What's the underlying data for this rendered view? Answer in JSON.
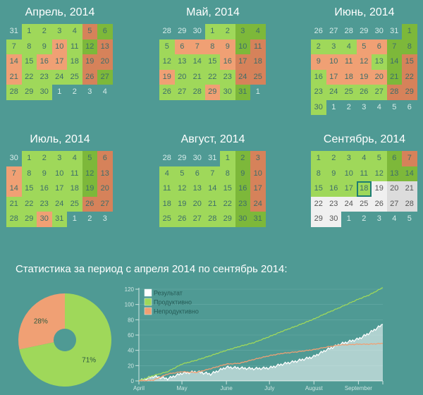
{
  "colors": {
    "background": "#4f9a94",
    "productive_weekday": "#9fd85a",
    "productive_weekend": "#7db83a",
    "unproductive_weekday": "#f0a074",
    "unproductive_weekend": "#d6825a",
    "future_weekday": "#f0f0f0",
    "future_weekend": "#dcdcdc",
    "result": "#ffffff",
    "today_border": "#1d7d73"
  },
  "months": [
    {
      "title": "Апрель, 2014",
      "weeks": [
        [
          [
            "31",
            "out"
          ],
          [
            "1",
            "lg"
          ],
          [
            "2",
            "lg"
          ],
          [
            "3",
            "lg"
          ],
          [
            "4",
            "lg"
          ],
          [
            "5",
            "ds"
          ],
          [
            "6",
            "dg"
          ]
        ],
        [
          [
            "7",
            "lg"
          ],
          [
            "8",
            "lg"
          ],
          [
            "9",
            "lg"
          ],
          [
            "10",
            "ls"
          ],
          [
            "11",
            "lg"
          ],
          [
            "12",
            "dg"
          ],
          [
            "13",
            "ds"
          ]
        ],
        [
          [
            "14",
            "ls"
          ],
          [
            "15",
            "lg"
          ],
          [
            "16",
            "ls"
          ],
          [
            "17",
            "ls"
          ],
          [
            "18",
            "lg"
          ],
          [
            "19",
            "ds"
          ],
          [
            "20",
            "ds"
          ]
        ],
        [
          [
            "21",
            "ls"
          ],
          [
            "22",
            "lg"
          ],
          [
            "23",
            "lg"
          ],
          [
            "24",
            "lg"
          ],
          [
            "25",
            "lg"
          ],
          [
            "26",
            "ds"
          ],
          [
            "27",
            "dg"
          ]
        ],
        [
          [
            "28",
            "lg"
          ],
          [
            "29",
            "lg"
          ],
          [
            "30",
            "lg"
          ],
          [
            "1",
            "out"
          ],
          [
            "2",
            "out"
          ],
          [
            "3",
            "out"
          ],
          [
            "4",
            "out"
          ]
        ]
      ]
    },
    {
      "title": "Май, 2014",
      "weeks": [
        [
          [
            "28",
            "out"
          ],
          [
            "29",
            "out"
          ],
          [
            "30",
            "out"
          ],
          [
            "1",
            "lg"
          ],
          [
            "2",
            "lg"
          ],
          [
            "3",
            "dg"
          ],
          [
            "4",
            "dg"
          ]
        ],
        [
          [
            "5",
            "lg"
          ],
          [
            "6",
            "ls"
          ],
          [
            "7",
            "ls"
          ],
          [
            "8",
            "ls"
          ],
          [
            "9",
            "ls"
          ],
          [
            "10",
            "dg"
          ],
          [
            "11",
            "ds"
          ]
        ],
        [
          [
            "12",
            "lg"
          ],
          [
            "13",
            "lg"
          ],
          [
            "14",
            "lg"
          ],
          [
            "15",
            "lg"
          ],
          [
            "16",
            "ls"
          ],
          [
            "17",
            "ds"
          ],
          [
            "18",
            "ds"
          ]
        ],
        [
          [
            "19",
            "ls"
          ],
          [
            "20",
            "lg"
          ],
          [
            "21",
            "lg"
          ],
          [
            "22",
            "lg"
          ],
          [
            "23",
            "lg"
          ],
          [
            "24",
            "ds"
          ],
          [
            "25",
            "ds"
          ]
        ],
        [
          [
            "26",
            "lg"
          ],
          [
            "27",
            "lg"
          ],
          [
            "28",
            "lg"
          ],
          [
            "29",
            "ls"
          ],
          [
            "30",
            "lg"
          ],
          [
            "31",
            "dg"
          ],
          [
            "1",
            "out"
          ]
        ]
      ]
    },
    {
      "title": "Июнь, 2014",
      "weeks": [
        [
          [
            "26",
            "out"
          ],
          [
            "27",
            "out"
          ],
          [
            "28",
            "out"
          ],
          [
            "29",
            "out"
          ],
          [
            "30",
            "out"
          ],
          [
            "31",
            "out"
          ],
          [
            "1",
            "dg"
          ]
        ],
        [
          [
            "2",
            "lg"
          ],
          [
            "3",
            "lg"
          ],
          [
            "4",
            "lg"
          ],
          [
            "5",
            "ls"
          ],
          [
            "6",
            "ls"
          ],
          [
            "7",
            "dg"
          ],
          [
            "8",
            "dg"
          ]
        ],
        [
          [
            "9",
            "ls"
          ],
          [
            "10",
            "ls"
          ],
          [
            "11",
            "ls"
          ],
          [
            "12",
            "ls"
          ],
          [
            "13",
            "lg"
          ],
          [
            "14",
            "dg"
          ],
          [
            "15",
            "ds"
          ]
        ],
        [
          [
            "16",
            "lg"
          ],
          [
            "17",
            "ls"
          ],
          [
            "18",
            "ls"
          ],
          [
            "19",
            "ls"
          ],
          [
            "20",
            "ls"
          ],
          [
            "21",
            "dg"
          ],
          [
            "22",
            "ds"
          ]
        ],
        [
          [
            "23",
            "lg"
          ],
          [
            "24",
            "lg"
          ],
          [
            "25",
            "lg"
          ],
          [
            "26",
            "lg"
          ],
          [
            "27",
            "lg"
          ],
          [
            "28",
            "ds"
          ],
          [
            "29",
            "ds"
          ]
        ],
        [
          [
            "30",
            "lg"
          ],
          [
            "1",
            "out"
          ],
          [
            "2",
            "out"
          ],
          [
            "3",
            "out"
          ],
          [
            "4",
            "out"
          ],
          [
            "5",
            "out"
          ],
          [
            "6",
            "out"
          ]
        ]
      ]
    },
    {
      "title": "Июль, 2014",
      "weeks": [
        [
          [
            "30",
            "out"
          ],
          [
            "1",
            "lg"
          ],
          [
            "2",
            "lg"
          ],
          [
            "3",
            "lg"
          ],
          [
            "4",
            "lg"
          ],
          [
            "5",
            "dg"
          ],
          [
            "6",
            "ds"
          ]
        ],
        [
          [
            "7",
            "ls"
          ],
          [
            "8",
            "lg"
          ],
          [
            "9",
            "lg"
          ],
          [
            "10",
            "lg"
          ],
          [
            "11",
            "lg"
          ],
          [
            "12",
            "dg"
          ],
          [
            "13",
            "ds"
          ]
        ],
        [
          [
            "14",
            "ls"
          ],
          [
            "15",
            "lg"
          ],
          [
            "16",
            "lg"
          ],
          [
            "17",
            "lg"
          ],
          [
            "18",
            "lg"
          ],
          [
            "19",
            "dg"
          ],
          [
            "20",
            "ds"
          ]
        ],
        [
          [
            "21",
            "lg"
          ],
          [
            "22",
            "lg"
          ],
          [
            "23",
            "lg"
          ],
          [
            "24",
            "lg"
          ],
          [
            "25",
            "lg"
          ],
          [
            "26",
            "ds"
          ],
          [
            "27",
            "ds"
          ]
        ],
        [
          [
            "28",
            "lg"
          ],
          [
            "29",
            "lg"
          ],
          [
            "30",
            "ls"
          ],
          [
            "31",
            "lg"
          ],
          [
            "1",
            "out"
          ],
          [
            "2",
            "out"
          ],
          [
            "3",
            "out"
          ]
        ]
      ]
    },
    {
      "title": "Август, 2014",
      "weeks": [
        [
          [
            "28",
            "out"
          ],
          [
            "29",
            "out"
          ],
          [
            "30",
            "out"
          ],
          [
            "31",
            "out"
          ],
          [
            "1",
            "lg"
          ],
          [
            "2",
            "dg"
          ],
          [
            "3",
            "ds"
          ]
        ],
        [
          [
            "4",
            "lg"
          ],
          [
            "5",
            "lg"
          ],
          [
            "6",
            "lg"
          ],
          [
            "7",
            "lg"
          ],
          [
            "8",
            "lg"
          ],
          [
            "9",
            "dg"
          ],
          [
            "10",
            "ds"
          ]
        ],
        [
          [
            "11",
            "lg"
          ],
          [
            "12",
            "lg"
          ],
          [
            "13",
            "lg"
          ],
          [
            "14",
            "lg"
          ],
          [
            "15",
            "lg"
          ],
          [
            "16",
            "dg"
          ],
          [
            "17",
            "ds"
          ]
        ],
        [
          [
            "18",
            "lg"
          ],
          [
            "19",
            "lg"
          ],
          [
            "20",
            "lg"
          ],
          [
            "21",
            "lg"
          ],
          [
            "22",
            "lg"
          ],
          [
            "23",
            "dg"
          ],
          [
            "24",
            "ds"
          ]
        ],
        [
          [
            "25",
            "lg"
          ],
          [
            "26",
            "lg"
          ],
          [
            "27",
            "lg"
          ],
          [
            "28",
            "lg"
          ],
          [
            "29",
            "lg"
          ],
          [
            "30",
            "dg"
          ],
          [
            "31",
            "dg"
          ]
        ]
      ]
    },
    {
      "title": "Сентябрь, 2014",
      "today": "18",
      "weeks": [
        [
          [
            "1",
            "lg"
          ],
          [
            "2",
            "lg"
          ],
          [
            "3",
            "lg"
          ],
          [
            "4",
            "lg"
          ],
          [
            "5",
            "lg"
          ],
          [
            "6",
            "dg"
          ],
          [
            "7",
            "ds"
          ]
        ],
        [
          [
            "8",
            "lg"
          ],
          [
            "9",
            "lg"
          ],
          [
            "10",
            "lg"
          ],
          [
            "11",
            "lg"
          ],
          [
            "12",
            "lg"
          ],
          [
            "13",
            "dg"
          ],
          [
            "14",
            "dg"
          ]
        ],
        [
          [
            "15",
            "lg"
          ],
          [
            "16",
            "lg"
          ],
          [
            "17",
            "lg"
          ],
          [
            "18",
            "lg today"
          ],
          [
            "19",
            "fw"
          ],
          [
            "20",
            "fe"
          ],
          [
            "21",
            "fe"
          ]
        ],
        [
          [
            "22",
            "fw"
          ],
          [
            "23",
            "fw"
          ],
          [
            "24",
            "fw"
          ],
          [
            "25",
            "fw"
          ],
          [
            "26",
            "fw"
          ],
          [
            "27",
            "fe"
          ],
          [
            "28",
            "fe"
          ]
        ],
        [
          [
            "29",
            "fw"
          ],
          [
            "30",
            "fw"
          ],
          [
            "1",
            "out"
          ],
          [
            "2",
            "out"
          ],
          [
            "3",
            "out"
          ],
          [
            "4",
            "out"
          ],
          [
            "5",
            "out"
          ]
        ]
      ]
    }
  ],
  "stats": {
    "title": "Статистика за период с апреля 2014 по сентябрь 2014:"
  },
  "chart_data": [
    {
      "type": "pie",
      "title": "",
      "donut": true,
      "slices": [
        {
          "label": "Непродуктивно",
          "value": 28,
          "display": "28%",
          "color": "#f0a074"
        },
        {
          "label": "Продуктивно",
          "value": 71,
          "display": "71%",
          "color": "#9fd85a"
        }
      ]
    },
    {
      "type": "line",
      "title": "",
      "xlabel": "",
      "ylabel": "",
      "ylim": [
        0,
        120
      ],
      "yticks": [
        0,
        20,
        40,
        60,
        80,
        100,
        120
      ],
      "xticks": [
        "April",
        "May",
        "June",
        "July",
        "August",
        "September"
      ],
      "grid": true,
      "legend_position": "top-left",
      "legend": [
        "Результат",
        "Продуктивно",
        "Непродуктивно"
      ],
      "x_days": [
        0,
        10,
        20,
        30,
        40,
        50,
        61,
        70,
        80,
        91,
        100,
        110,
        122,
        130,
        140,
        153,
        160,
        170
      ],
      "series": [
        {
          "name": "Результат",
          "color": "#ffffff",
          "area": true,
          "values": [
            0,
            6,
            3,
            10,
            12,
            9,
            18,
            17,
            16,
            17,
            22,
            26,
            32,
            40,
            48,
            55,
            62,
            74
          ]
        },
        {
          "name": "Продуктивно",
          "color": "#9fd85a",
          "values": [
            0,
            7,
            12,
            22,
            27,
            33,
            40,
            45,
            50,
            58,
            65,
            72,
            81,
            88,
            96,
            107,
            112,
            122
          ]
        },
        {
          "name": "Непродуктивно",
          "color": "#f0a074",
          "values": [
            0,
            1,
            9,
            12,
            11,
            16,
            22,
            23,
            28,
            33,
            36,
            38,
            41,
            44,
            47,
            48,
            48,
            49
          ]
        }
      ]
    }
  ]
}
